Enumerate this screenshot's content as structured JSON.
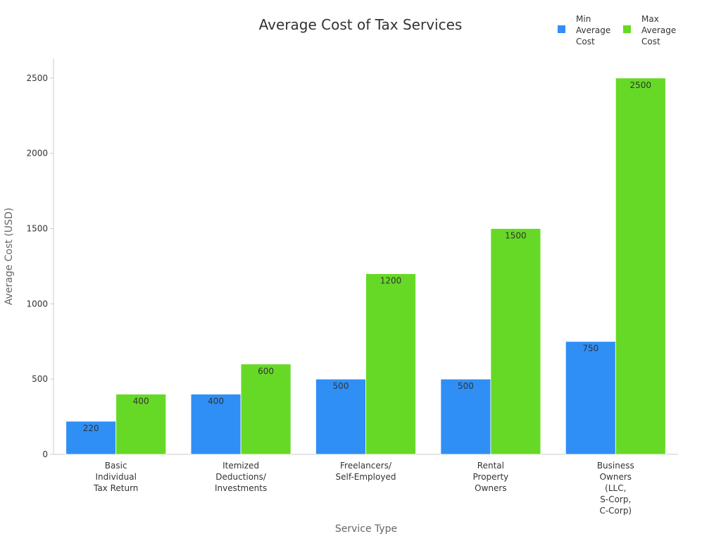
{
  "chart_data": {
    "type": "bar",
    "title": "Average Cost of Tax Services",
    "x_label": "Service Type",
    "y_label": "Average Cost (USD)",
    "categories": [
      "Basic\nIndividual\nTax Return",
      "Itemized\nDeductions/\nInvestments",
      "Freelancers/\nSelf-Employed",
      "Rental\nProperty\nOwners",
      "Business\nOwners\n(LLC,\nS-Corp,\nC-Corp)"
    ],
    "series": [
      {
        "name": "Min\nAverage\nCost",
        "color": "#2f8ff5",
        "values": [
          220,
          400,
          500,
          500,
          750
        ]
      },
      {
        "name": "Max\nAverage\nCost",
        "color": "#66d926",
        "values": [
          400,
          600,
          1200,
          1500,
          2500
        ]
      }
    ],
    "ylim": [
      0,
      2630
    ],
    "yticks": [
      0,
      500,
      1000,
      1500,
      2000,
      2500
    ],
    "grid": false,
    "legend": "top-right"
  }
}
